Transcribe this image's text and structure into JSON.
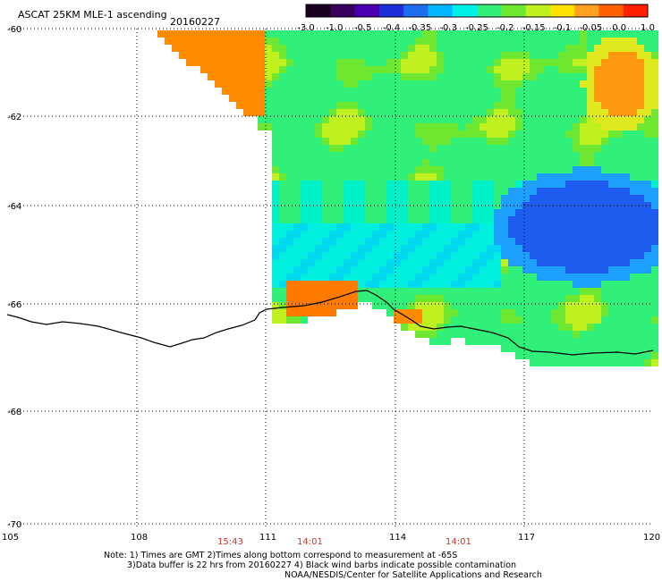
{
  "header": {
    "title": "ASCAT 25KM MLE-1 ascending",
    "date": "20160227"
  },
  "colorbar": {
    "ticks": [
      "-3.0",
      "-1.0",
      "-0.5",
      "-0.4",
      "-0.35",
      "-0.3",
      "-0.25",
      "-0.2",
      "-0.15",
      "-0.1",
      "-0.05",
      "0.0",
      "1.0"
    ],
    "colors": [
      "#1a0020",
      "#3a0060",
      "#4a00b0",
      "#1d2fd6",
      "#1e6ef0",
      "#00b7ff",
      "#00f0e8",
      "#30f07a",
      "#6ee830",
      "#c0f020",
      "#ffe000",
      "#ffa020",
      "#ff6000",
      "#ff2000"
    ]
  },
  "map": {
    "lon_labels": [
      "105",
      "108",
      "111",
      "114",
      "117",
      "120"
    ],
    "lat_labels": [
      "-60",
      "-62",
      "-64",
      "-66",
      "-68",
      "-70"
    ],
    "pass_times": [
      "15:43",
      "14:01",
      "14:01"
    ]
  },
  "notes": {
    "line1": "Note: 1) Times are GMT 2)Times along bottom correspond to measurement at -65S",
    "line2": "3)Data buffer is 22 hrs from 20160227 4) Black wind barbs indicate possible contamination",
    "line3": "NOAA/NESDIS/Center for Satellite Applications and Research"
  }
}
